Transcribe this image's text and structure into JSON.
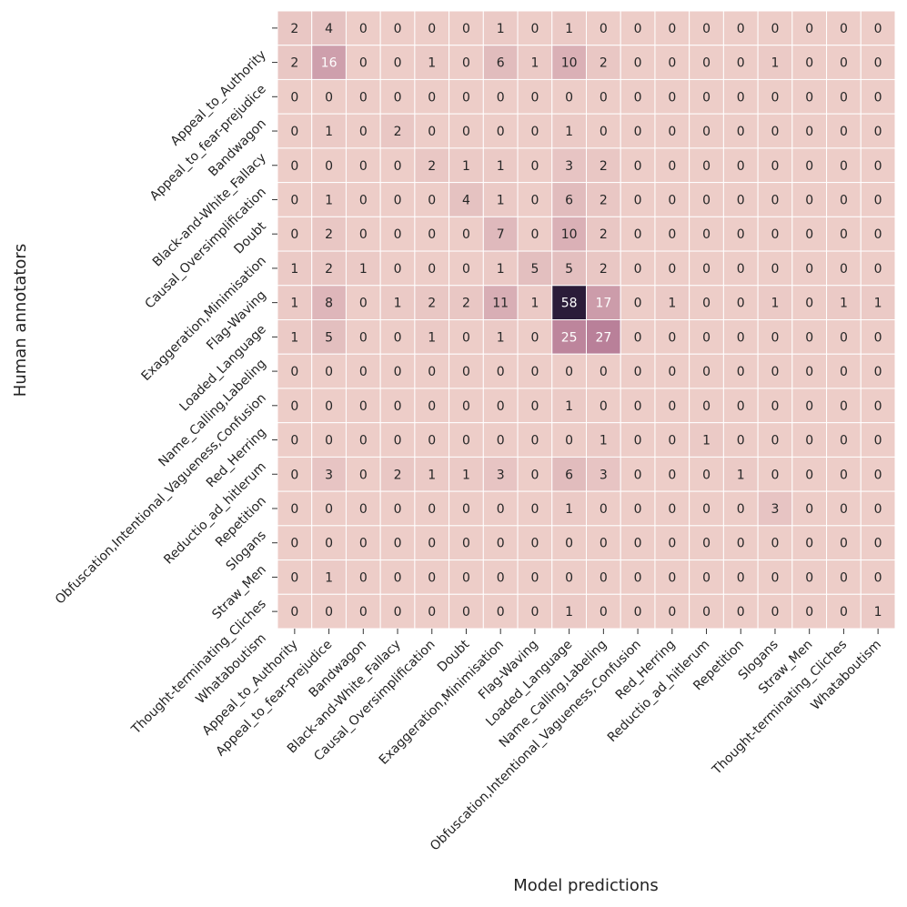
{
  "chart_data": {
    "type": "heatmap",
    "title": "",
    "xlabel": "Model predictions",
    "ylabel": "Human annotators",
    "categories": [
      "Appeal_to_Authority",
      "Appeal_to_fear-prejudice",
      "Bandwagon",
      "Black-and-White_Fallacy",
      "Causal_Oversimplification",
      "Doubt",
      "Exaggeration,Minimisation",
      "Flag-Waving",
      "Loaded_Language",
      "Name_Calling,Labeling",
      "Obfuscation,Intentional_Vagueness,Confusion",
      "Red_Herring",
      "Reductio_ad_hitlerum",
      "Repetition",
      "Slogans",
      "Straw_Men",
      "Thought-terminating_Cliches",
      "Whataboutism"
    ],
    "matrix": [
      [
        2,
        4,
        0,
        0,
        0,
        0,
        1,
        0,
        1,
        0,
        0,
        0,
        0,
        0,
        0,
        0,
        0,
        0
      ],
      [
        2,
        16,
        0,
        0,
        1,
        0,
        6,
        1,
        10,
        2,
        0,
        0,
        0,
        0,
        1,
        0,
        0,
        0
      ],
      [
        0,
        0,
        0,
        0,
        0,
        0,
        0,
        0,
        0,
        0,
        0,
        0,
        0,
        0,
        0,
        0,
        0,
        0
      ],
      [
        0,
        1,
        0,
        2,
        0,
        0,
        0,
        0,
        1,
        0,
        0,
        0,
        0,
        0,
        0,
        0,
        0,
        0
      ],
      [
        0,
        0,
        0,
        0,
        2,
        1,
        1,
        0,
        3,
        2,
        0,
        0,
        0,
        0,
        0,
        0,
        0,
        0
      ],
      [
        0,
        1,
        0,
        0,
        0,
        4,
        1,
        0,
        6,
        2,
        0,
        0,
        0,
        0,
        0,
        0,
        0,
        0
      ],
      [
        0,
        2,
        0,
        0,
        0,
        0,
        7,
        0,
        10,
        2,
        0,
        0,
        0,
        0,
        0,
        0,
        0,
        0
      ],
      [
        1,
        2,
        1,
        0,
        0,
        0,
        1,
        5,
        5,
        2,
        0,
        0,
        0,
        0,
        0,
        0,
        0,
        0
      ],
      [
        1,
        8,
        0,
        1,
        2,
        2,
        11,
        1,
        58,
        17,
        0,
        1,
        0,
        0,
        1,
        0,
        1,
        1
      ],
      [
        1,
        5,
        0,
        0,
        1,
        0,
        1,
        0,
        25,
        27,
        0,
        0,
        0,
        0,
        0,
        0,
        0,
        0
      ],
      [
        0,
        0,
        0,
        0,
        0,
        0,
        0,
        0,
        0,
        0,
        0,
        0,
        0,
        0,
        0,
        0,
        0,
        0
      ],
      [
        0,
        0,
        0,
        0,
        0,
        0,
        0,
        0,
        1,
        0,
        0,
        0,
        0,
        0,
        0,
        0,
        0,
        0
      ],
      [
        0,
        0,
        0,
        0,
        0,
        0,
        0,
        0,
        0,
        1,
        0,
        0,
        1,
        0,
        0,
        0,
        0,
        0
      ],
      [
        0,
        3,
        0,
        2,
        1,
        1,
        3,
        0,
        6,
        3,
        0,
        0,
        0,
        1,
        0,
        0,
        0,
        0
      ],
      [
        0,
        0,
        0,
        0,
        0,
        0,
        0,
        0,
        1,
        0,
        0,
        0,
        0,
        0,
        3,
        0,
        0,
        0
      ],
      [
        0,
        0,
        0,
        0,
        0,
        0,
        0,
        0,
        0,
        0,
        0,
        0,
        0,
        0,
        0,
        0,
        0,
        0
      ],
      [
        0,
        1,
        0,
        0,
        0,
        0,
        0,
        0,
        0,
        0,
        0,
        0,
        0,
        0,
        0,
        0,
        0,
        0
      ],
      [
        0,
        0,
        0,
        0,
        0,
        0,
        0,
        0,
        1,
        0,
        0,
        0,
        0,
        0,
        0,
        0,
        0,
        1
      ]
    ],
    "value_range": [
      0,
      58
    ],
    "colors": {
      "low": "#edcdc8",
      "mid": "#b57a95",
      "high": "#2b1c39",
      "text_dark": "#262626",
      "text_light": "#ffffff",
      "grid": "#ffffff"
    }
  }
}
